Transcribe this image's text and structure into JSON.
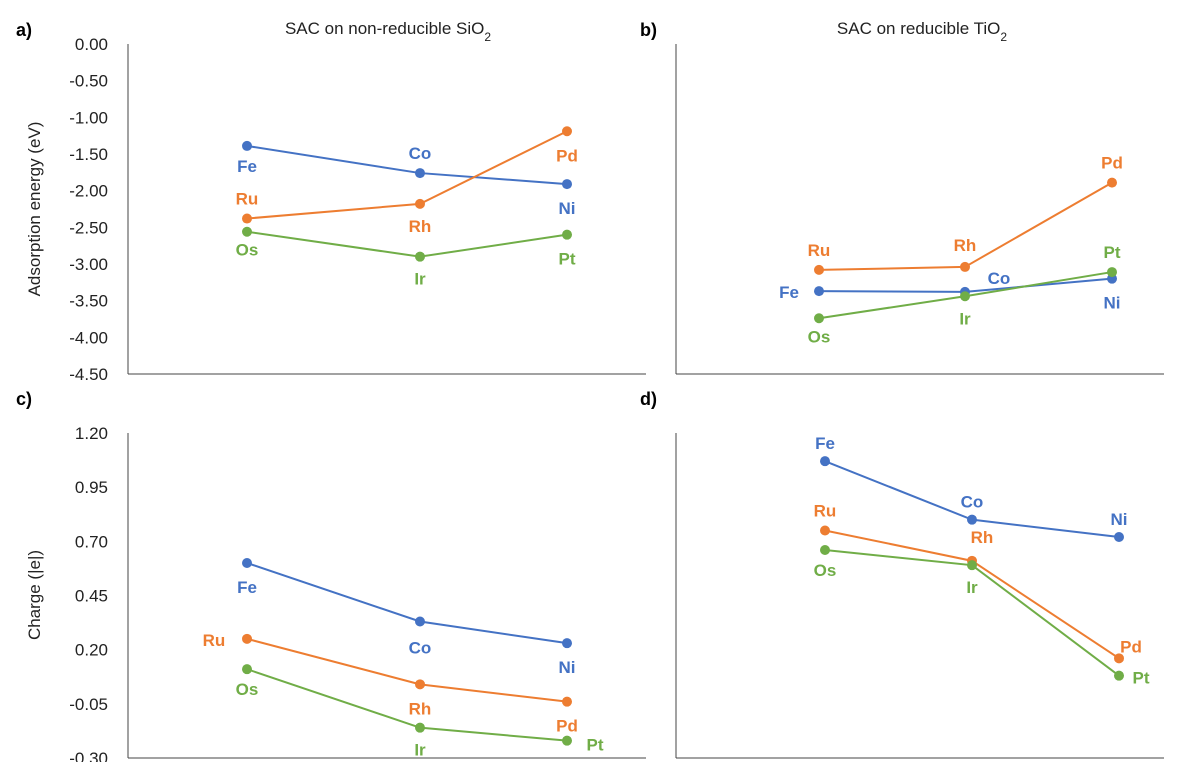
{
  "figure": {
    "background": "#ffffff"
  },
  "colors": {
    "blue": "#4472C4",
    "orange": "#ED7D31",
    "green": "#70AD47"
  },
  "chart_data": [
    {
      "panel": "a)",
      "type": "line",
      "title": "SAC on non-reducible SiO",
      "title_sub": "2",
      "ylabel": "Adsorption energy (eV)",
      "ylim": [
        -4.5,
        0
      ],
      "yticks": [
        "0.00",
        "-0.50",
        "-1.00",
        "-1.50",
        "-2.00",
        "-2.50",
        "-3.00",
        "-3.50",
        "-4.00",
        "-4.50"
      ],
      "show_yticks": true,
      "series": [
        {
          "color": "blue",
          "values": [
            -1.39,
            -1.76,
            -1.91
          ],
          "labels": [
            "Fe",
            "Co",
            "Ni"
          ]
        },
        {
          "color": "orange",
          "values": [
            -2.38,
            -2.18,
            -1.19
          ],
          "labels": [
            "Ru",
            "Rh",
            "Pd"
          ]
        },
        {
          "color": "green",
          "values": [
            -2.56,
            -2.9,
            -2.6
          ],
          "labels": [
            "Os",
            "Ir",
            "Pt"
          ]
        }
      ]
    },
    {
      "panel": "b)",
      "type": "line",
      "title": "SAC on reducible TiO",
      "title_sub": "2",
      "ylabel": "",
      "ylim": [
        -4.5,
        0
      ],
      "yticks": [],
      "show_yticks": false,
      "series": [
        {
          "color": "blue",
          "values": [
            -3.37,
            -3.38,
            -3.2
          ],
          "labels": [
            "Fe",
            "Co",
            "Ni"
          ]
        },
        {
          "color": "orange",
          "values": [
            -3.08,
            -3.04,
            -1.89
          ],
          "labels": [
            "Ru",
            "Rh",
            "Pd"
          ]
        },
        {
          "color": "green",
          "values": [
            -3.74,
            -3.44,
            -3.11
          ],
          "labels": [
            "Os",
            "Ir",
            "Pt"
          ]
        }
      ]
    },
    {
      "panel": "c)",
      "type": "line",
      "title": "",
      "title_sub": "",
      "ylabel": "Charge (|e|)",
      "ylim": [
        -0.3,
        1.2
      ],
      "yticks": [
        "1.20",
        "0.95",
        "0.70",
        "0.45",
        "0.20",
        "-0.05",
        "-0.30"
      ],
      "show_yticks": true,
      "series": [
        {
          "color": "blue",
          "values": [
            0.6,
            0.33,
            0.23
          ],
          "labels": [
            "Fe",
            "Co",
            "Ni"
          ]
        },
        {
          "color": "orange",
          "values": [
            0.25,
            0.04,
            -0.04
          ],
          "labels": [
            "Ru",
            "Rh",
            "Pd"
          ]
        },
        {
          "color": "green",
          "values": [
            0.11,
            -0.16,
            -0.22
          ],
          "labels": [
            "Os",
            "Ir",
            "Pt"
          ]
        }
      ]
    },
    {
      "panel": "d)",
      "type": "line",
      "title": "",
      "title_sub": "",
      "ylabel": "",
      "ylim": [
        -0.3,
        1.2
      ],
      "yticks": [],
      "show_yticks": false,
      "series": [
        {
          "color": "blue",
          "values": [
            1.07,
            0.8,
            0.72
          ],
          "labels": [
            "Fe",
            "Co",
            "Ni"
          ]
        },
        {
          "color": "orange",
          "values": [
            0.75,
            0.61,
            0.16
          ],
          "labels": [
            "Ru",
            "Rh",
            "Pd"
          ]
        },
        {
          "color": "green",
          "values": [
            0.66,
            0.59,
            0.08
          ],
          "labels": [
            "Os",
            "Ir",
            "Pt"
          ]
        }
      ]
    }
  ]
}
